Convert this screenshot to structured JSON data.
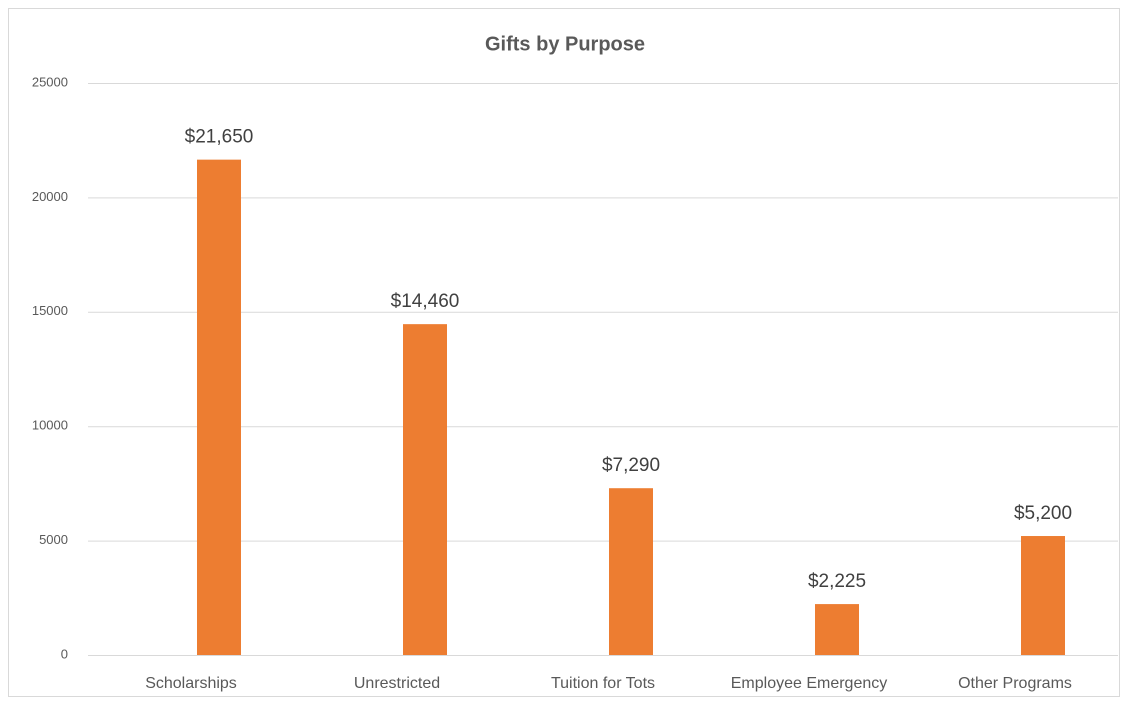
{
  "chart_data": {
    "type": "bar",
    "title": "Gifts by Purpose",
    "categories": [
      "Scholarships",
      "Unrestricted",
      "Tuition for Tots",
      "Employee Emergency",
      "Other Programs"
    ],
    "values": [
      21650,
      14460,
      7290,
      2225,
      5200
    ],
    "value_labels": [
      "$21,650",
      "$14,460",
      "$7,290",
      "$2,225",
      "$5,200"
    ],
    "color": "#ed7d31",
    "ylim": [
      0,
      25000
    ],
    "yticks": [
      0,
      5000,
      10000,
      15000,
      20000,
      25000
    ],
    "grid": true
  }
}
